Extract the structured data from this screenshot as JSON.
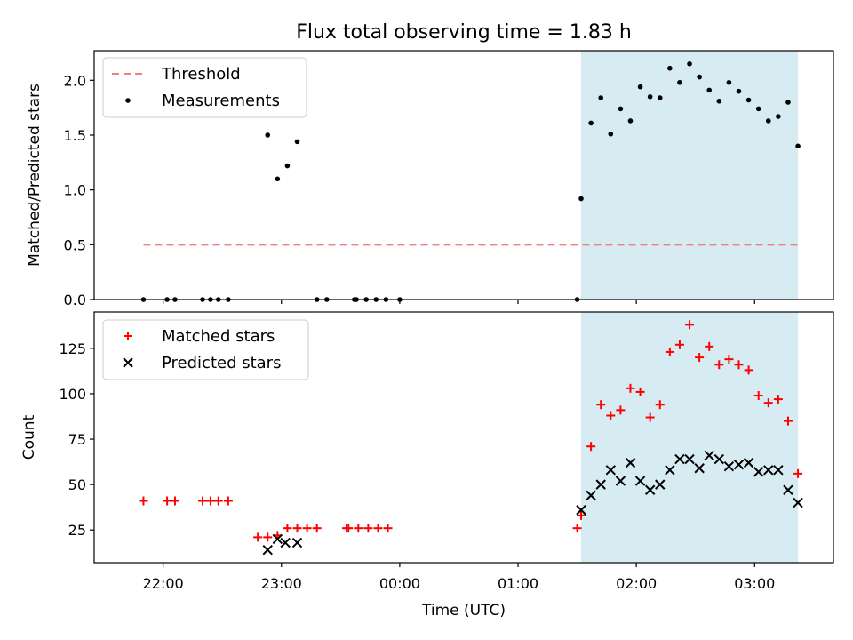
{
  "title": "Flux total observing time = 1.83 h",
  "colors": {
    "threshold": "#f08080",
    "measurement": "#000000",
    "matched": "#ff0000",
    "predicted": "#000000",
    "observing_window": "#add8e6"
  },
  "chart_data": [
    {
      "type": "scatter",
      "panel": "top",
      "ylabel": "Matched/Predicted stars",
      "ylim": [
        0,
        2.27
      ],
      "yticks": [
        0.0,
        0.5,
        1.0,
        1.5,
        2.0
      ],
      "ytick_labels": [
        "0.0",
        "0.5",
        "1.0",
        "1.5",
        "2.0"
      ],
      "legend": {
        "position": "top-left",
        "entries": [
          "Threshold",
          "Measurements"
        ]
      },
      "threshold": {
        "name": "Threshold",
        "y": 0.5,
        "x_range": [
          "21:50",
          "03:22"
        ]
      },
      "observing_window": [
        "01:32",
        "03:22"
      ],
      "series": [
        {
          "name": "Measurements",
          "x": [
            "21:50",
            "22:02",
            "22:06",
            "22:20",
            "22:24",
            "22:28",
            "22:33",
            "22:53",
            "22:58",
            "23:03",
            "23:08",
            "23:18",
            "23:23",
            "23:37",
            "23:38",
            "23:43",
            "23:48",
            "23:53",
            "24:00",
            "01:30",
            "01:32",
            "01:37",
            "01:42",
            "01:47",
            "01:52",
            "01:57",
            "02:02",
            "02:07",
            "02:12",
            "02:17",
            "02:22",
            "02:27",
            "02:32",
            "02:37",
            "02:42",
            "02:47",
            "02:52",
            "02:57",
            "03:02",
            "03:07",
            "03:12",
            "03:17",
            "03:22"
          ],
          "y": [
            0,
            0,
            0,
            0,
            0,
            0,
            0,
            1.5,
            1.1,
            1.22,
            1.44,
            0,
            0,
            0,
            0,
            0,
            0,
            0,
            0,
            0,
            0.92,
            1.61,
            1.84,
            1.51,
            1.74,
            1.63,
            1.94,
            1.85,
            1.84,
            2.11,
            1.98,
            2.15,
            2.03,
            1.91,
            1.81,
            1.98,
            1.9,
            1.82,
            1.74,
            1.63,
            1.67,
            1.8,
            1.4
          ]
        }
      ]
    },
    {
      "type": "scatter",
      "panel": "bottom",
      "xlabel": "Time (UTC)",
      "ylabel": "Count",
      "xlim": [
        "21:25",
        "03:40"
      ],
      "xticks": [
        "22:00",
        "23:00",
        "00:00",
        "01:00",
        "02:00",
        "03:00"
      ],
      "ylim": [
        7,
        145
      ],
      "yticks": [
        25,
        50,
        75,
        100,
        125
      ],
      "ytick_labels": [
        "25",
        "50",
        "75",
        "100",
        "125"
      ],
      "legend": {
        "position": "top-left",
        "entries": [
          "Matched stars",
          "Predicted stars"
        ]
      },
      "observing_window": [
        "01:32",
        "03:22"
      ],
      "series": [
        {
          "name": "Matched stars",
          "x": [
            "21:50",
            "22:02",
            "22:06",
            "22:20",
            "22:24",
            "22:28",
            "22:33",
            "22:48",
            "22:53",
            "22:58",
            "23:03",
            "23:08",
            "23:13",
            "23:18",
            "23:33",
            "23:34",
            "23:39",
            "23:44",
            "23:49",
            "23:54",
            "01:30",
            "01:32",
            "01:37",
            "01:42",
            "01:47",
            "01:52",
            "01:57",
            "02:02",
            "02:07",
            "02:12",
            "02:17",
            "02:22",
            "02:27",
            "02:32",
            "02:37",
            "02:42",
            "02:47",
            "02:52",
            "02:57",
            "03:02",
            "03:07",
            "03:12",
            "03:17",
            "03:22"
          ],
          "y": [
            41,
            41,
            41,
            41,
            41,
            41,
            41,
            21,
            21,
            22,
            26,
            26,
            26,
            26,
            26,
            26,
            26,
            26,
            26,
            26,
            26,
            33,
            71,
            94,
            88,
            91,
            103,
            101,
            87,
            94,
            123,
            127,
            138,
            120,
            126,
            116,
            119,
            116,
            113,
            99,
            95,
            97,
            85,
            56
          ]
        },
        {
          "name": "Predicted stars",
          "x": [
            "22:53",
            "22:58",
            "23:02",
            "23:08",
            "01:32",
            "01:37",
            "01:42",
            "01:47",
            "01:52",
            "01:57",
            "02:02",
            "02:07",
            "02:12",
            "02:17",
            "02:22",
            "02:27",
            "02:32",
            "02:37",
            "02:42",
            "02:47",
            "02:52",
            "02:57",
            "03:02",
            "03:07",
            "03:12",
            "03:17",
            "03:22"
          ],
          "y": [
            14,
            20,
            18,
            18,
            36,
            44,
            50,
            58,
            52,
            62,
            52,
            47,
            50,
            58,
            64,
            64,
            59,
            66,
            64,
            60,
            61,
            62,
            57,
            58,
            58,
            47,
            40
          ]
        }
      ]
    }
  ]
}
